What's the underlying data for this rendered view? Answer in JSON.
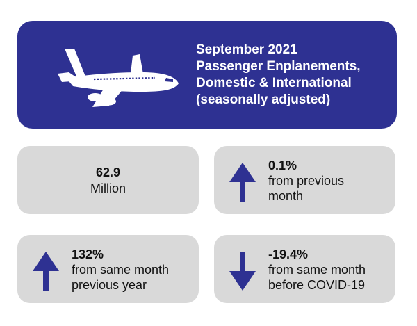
{
  "header": {
    "lines": [
      "September 2021",
      "Passenger Enplanements,",
      "Domestic & International",
      "(seasonally adjusted)"
    ],
    "icon": "airplane-icon"
  },
  "cards": [
    {
      "value": "62.9",
      "label": "Million"
    },
    {
      "value": "0.1%",
      "label_lines": [
        "from previous",
        "month"
      ],
      "direction": "up",
      "icon": "arrow-up-icon"
    },
    {
      "value": "132%",
      "label_lines": [
        "from same month",
        "previous year"
      ],
      "direction": "up",
      "icon": "arrow-up-icon"
    },
    {
      "value": "-19.4%",
      "label_lines": [
        "from same month",
        "before COVID-19"
      ],
      "direction": "down",
      "icon": "arrow-down-icon"
    }
  ],
  "colors": {
    "header_bg": "#2e3192",
    "card_bg": "#d9d9d9",
    "arrow": "#2e3192"
  }
}
